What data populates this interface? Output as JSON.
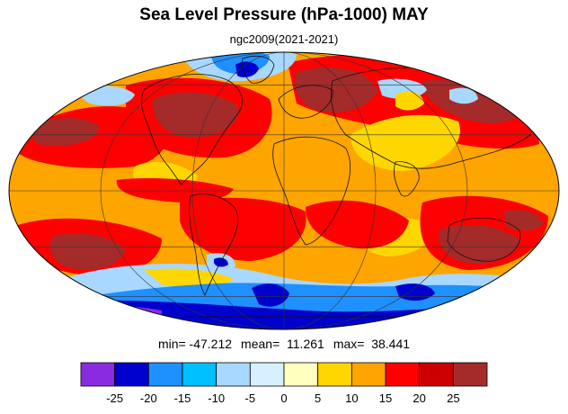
{
  "title": "Sea Level Pressure (hPa-1000) MAY",
  "subtitle": "ngc2009(2021-2021)",
  "stats": {
    "min": "min= -47.212",
    "mean": "mean=  11.261",
    "max": "max=  38.441"
  },
  "colorbar": {
    "colors": [
      "#8a2be2",
      "#0000cd",
      "#1e90ff",
      "#00bfff",
      "#a8d8ff",
      "#d6f0ff",
      "#ffffc0",
      "#ffd700",
      "#ffa500",
      "#ff0000",
      "#cc0000",
      "#a52a2a"
    ],
    "labels": [
      "-25",
      "-20",
      "-15",
      "-10",
      "-5",
      "0",
      "5",
      "10",
      "15",
      "20",
      "25"
    ]
  },
  "map": {
    "projection": "mollweide",
    "field_colors": {
      "ocean_base": "#ffa500",
      "warm": "#ff0000",
      "hot": "#a52a2a",
      "mild": "#ffd700",
      "cool": "#a8d8ff",
      "cold": "#1e90ff",
      "deep_low": "#0000cd",
      "extreme_low": "#8a2be2"
    },
    "graticule": true,
    "coastlines": true
  }
}
